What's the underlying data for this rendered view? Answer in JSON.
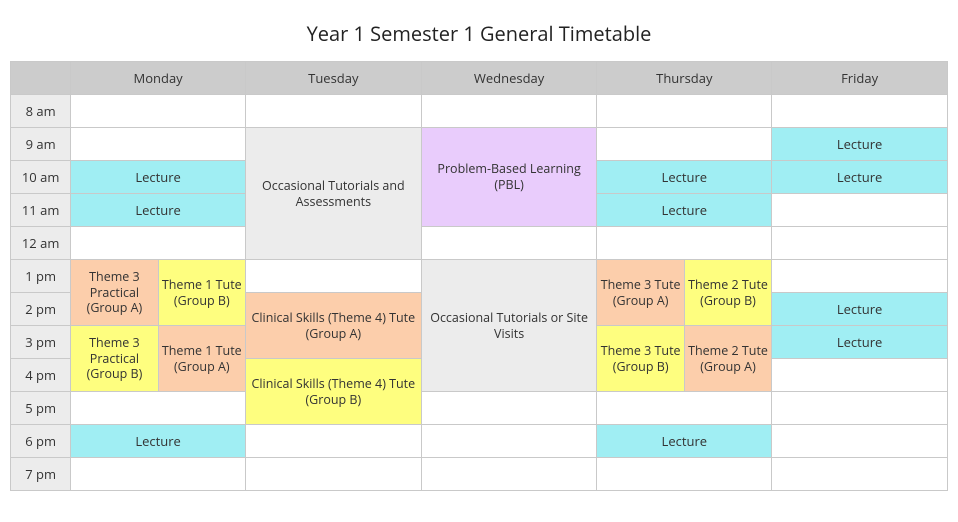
{
  "title": "Year 1 Semester 1 General Timetable",
  "days": {
    "mon": "Monday",
    "tue": "Tuesday",
    "wed": "Wednesday",
    "thu": "Thursday",
    "fri": "Friday"
  },
  "times": [
    "8 am",
    "9 am",
    "10 am",
    "11 am",
    "12 am",
    "1 pm",
    "2 pm",
    "3 pm",
    "4 pm",
    "5 pm",
    "6 pm",
    "7 pm"
  ],
  "colors": {
    "header": "#cccccc",
    "timecol": "#ececec",
    "border": "#c9c9c9",
    "lecture": "#a0eef3",
    "pbl": "#e9ccfc",
    "occasional": "#ececec",
    "orange": "#fcceab",
    "yellow": "#fefe7f",
    "background": "#ffffff",
    "text": "#333333"
  },
  "labels": {
    "lecture": "Lecture",
    "pbl": "Problem-Based Learning (PBL)",
    "occ_tue": "Occasional Tutorials and Assessments",
    "occ_wed": "Occasional Tutorials or Site Visits",
    "theme3_prac_a": "Theme 3 Practical (Group A)",
    "theme3_prac_b": "Theme 3 Practical (Group B)",
    "theme1_tute_a": "Theme 1 Tute (Group A)",
    "theme1_tute_b": "Theme 1 Tute (Group B)",
    "theme3_tute_a": "Theme 3 Tute (Group A)",
    "theme3_tute_b": "Theme 3 Tute (Group B)",
    "theme2_tute_a": "Theme 2 Tute (Group A)",
    "theme2_tute_b": "Theme 2 Tute (Group B)",
    "clin_a": "Clinical Skills (Theme 4) Tute (Group A)",
    "clin_b": "Clinical Skills (Theme 4) Tute (Group B)"
  },
  "fonts": {
    "title_size": 20,
    "cell_size": 13
  }
}
